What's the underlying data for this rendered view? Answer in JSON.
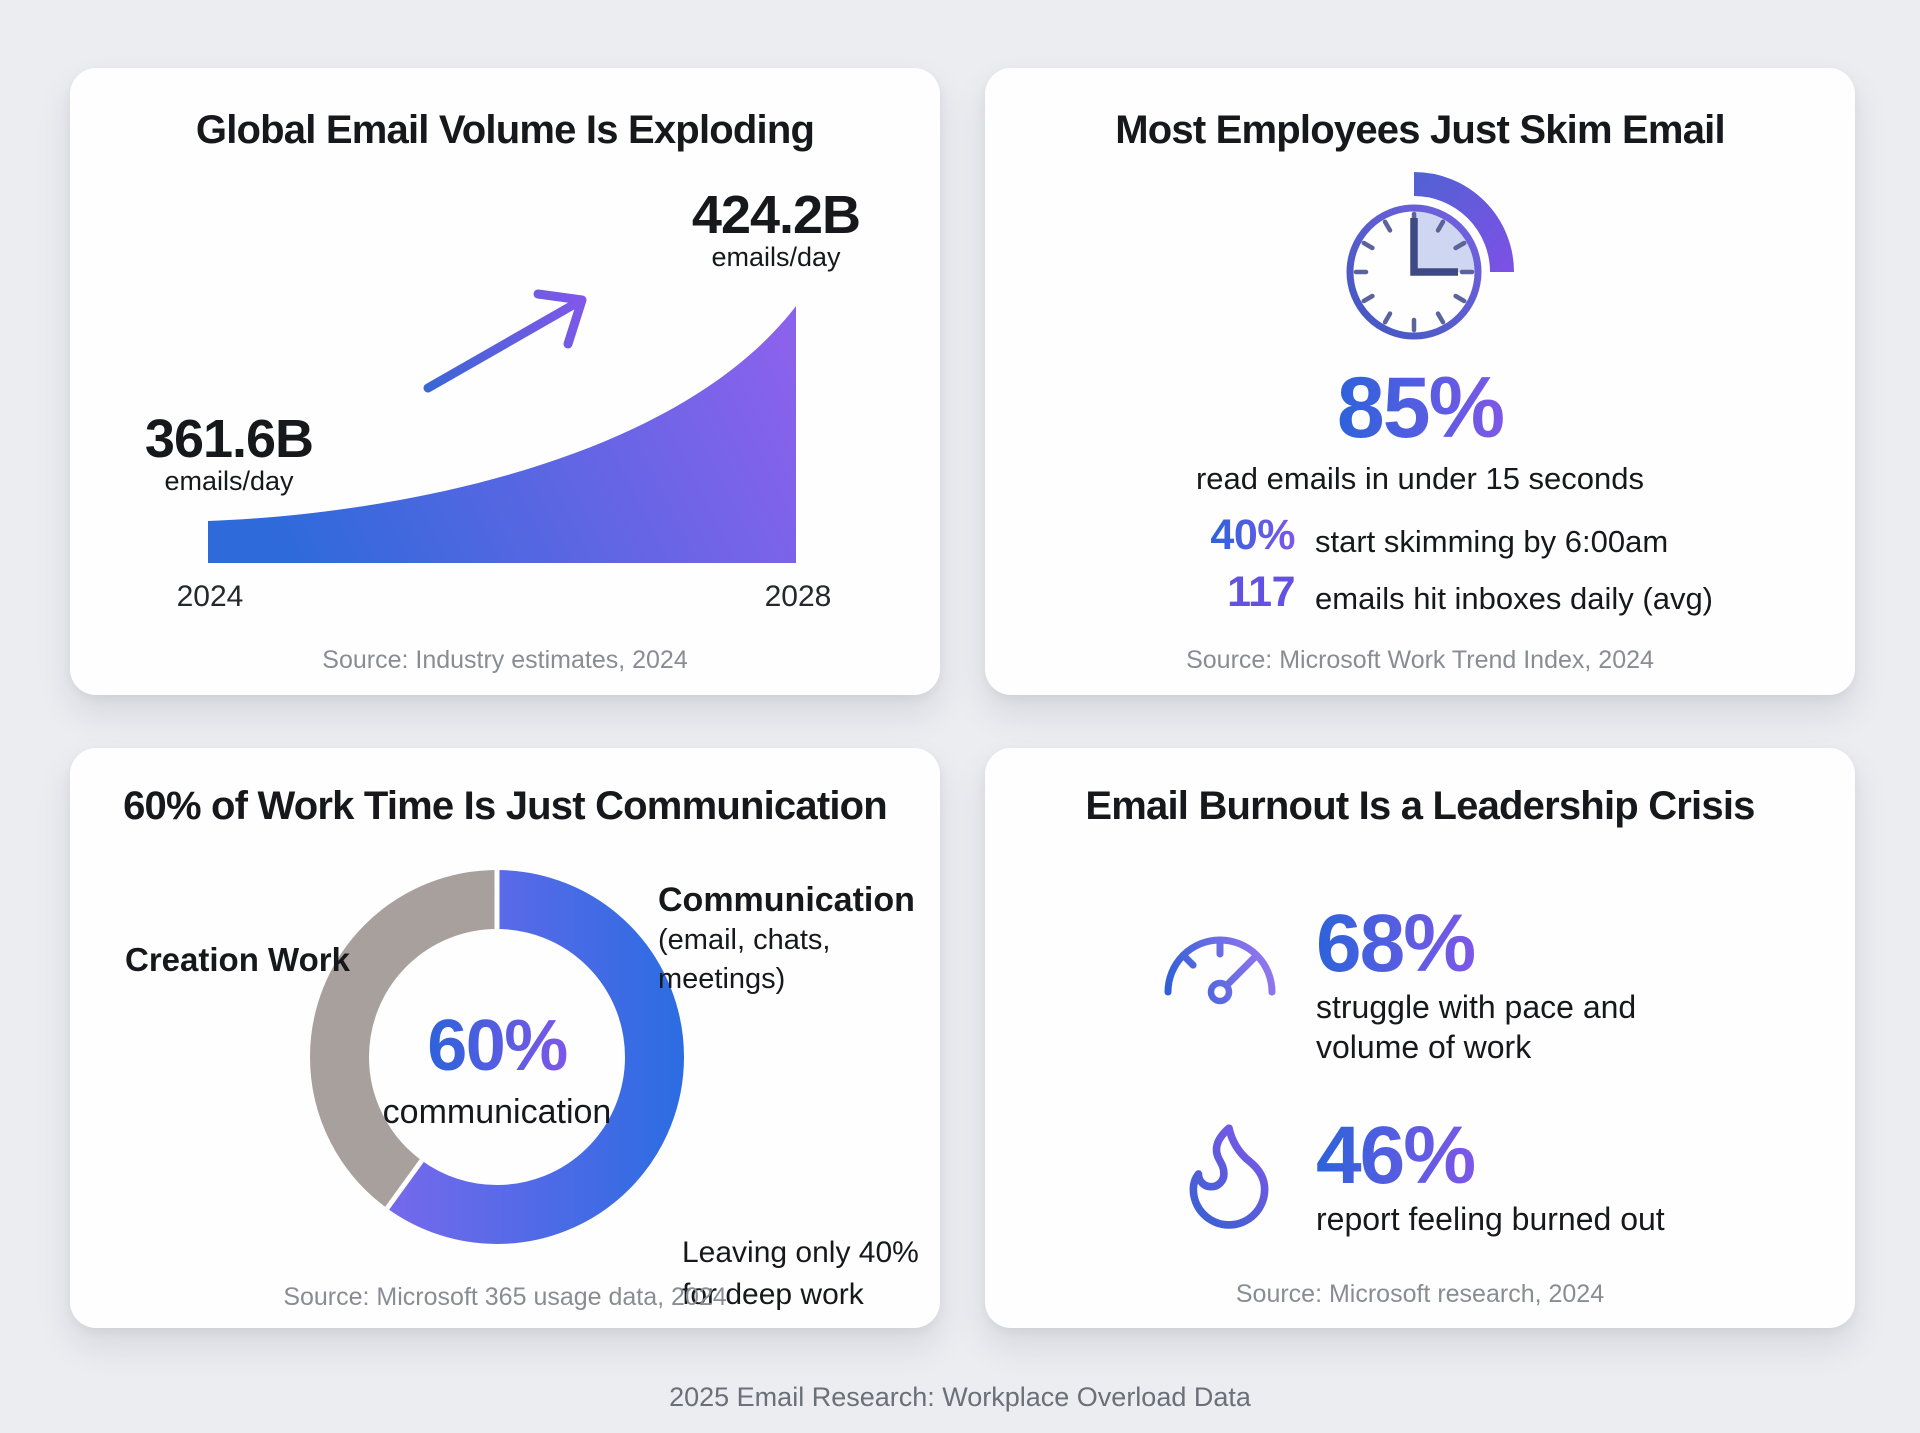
{
  "page": {
    "background": "#ecedf1",
    "footer": "2025 Email Research: Workplace Overload Data"
  },
  "colors": {
    "accent_blue": "#2c63da",
    "accent_purple": "#7d57e8",
    "area_blue": "#2e6ada",
    "area_purple": "#8a62ec",
    "donut_gray": "#a8a09c",
    "title_text": "#17181c",
    "source_text": "#888d94",
    "footer_text": "#6b6f77"
  },
  "cards": {
    "email_volume": {
      "title": "Global Email Volume Is Exploding",
      "end_value": "424.2B",
      "end_unit": "emails/day",
      "start_value": "361.6B",
      "start_unit": "emails/day",
      "year_start": "2024",
      "year_end": "2028",
      "source": "Source: Industry estimates, 2024"
    },
    "skim": {
      "title": "Most Employees Just Skim Email",
      "big_value": "85%",
      "big_caption": "read emails in under 15 seconds",
      "rows": [
        {
          "value": "40%",
          "label": "start skimming by 6:00am"
        },
        {
          "value": "117",
          "label": "emails hit inboxes daily (avg)"
        }
      ],
      "source": "Source: Microsoft Work Trend Index, 2024"
    },
    "communication": {
      "title": "60% of Work Time Is Just Communication",
      "center_value": "60%",
      "center_caption": "communication",
      "left_label": "Creation Work",
      "right_label": "Communication",
      "right_sublabel": "(email, chats, meetings)",
      "note_line1": "Leaving only 40%",
      "note_line2": "for deep work",
      "source": "Source: Microsoft 365 usage data, 2024"
    },
    "burnout": {
      "title": "Email Burnout Is a Leadership Crisis",
      "stats": [
        {
          "value": "68%",
          "line1": "struggle with pace and",
          "line2": "volume of work"
        },
        {
          "value": "46%",
          "line1": "report feeling burned out",
          "line2": ""
        }
      ],
      "source": "Source: Microsoft research, 2024"
    }
  },
  "chart_data": [
    {
      "type": "area",
      "title": "Global Email Volume Is Exploding",
      "x": [
        "2024",
        "2028"
      ],
      "series": [
        {
          "name": "Global email volume",
          "values": [
            361.6,
            424.2
          ]
        }
      ],
      "unit": "billion emails/day",
      "annotations": [
        "361.6B emails/day in 2024",
        "424.2B emails/day in 2028"
      ],
      "source": "Industry estimates, 2024"
    },
    {
      "type": "table",
      "title": "Most Employees Just Skim Email",
      "rows": [
        [
          "85%",
          "read emails in under 15 seconds"
        ],
        [
          "40%",
          "start skimming by 6:00am"
        ],
        [
          "117",
          "emails hit inboxes daily (avg)"
        ]
      ],
      "source": "Microsoft Work Trend Index, 2024"
    },
    {
      "type": "pie",
      "title": "60% of Work Time Is Just Communication",
      "categories": [
        "Communication (email, chats, meetings)",
        "Creation Work"
      ],
      "values": [
        60,
        40
      ],
      "center_label": "60% communication",
      "note": "Leaving only 40% for deep work",
      "source": "Microsoft 365 usage data, 2024"
    },
    {
      "type": "table",
      "title": "Email Burnout Is a Leadership Crisis",
      "rows": [
        [
          "68%",
          "struggle with pace and volume of work"
        ],
        [
          "46%",
          "report feeling burned out"
        ]
      ],
      "source": "Microsoft research, 2024"
    }
  ]
}
